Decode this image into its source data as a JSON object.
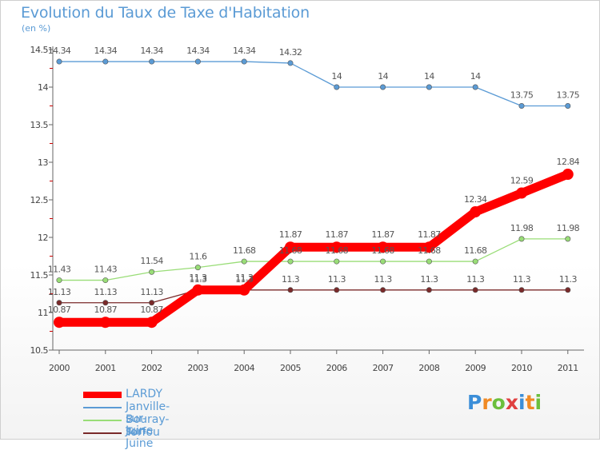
{
  "chart_data": {
    "type": "line",
    "title": "Evolution du Taux de Taxe d'Habitation",
    "subtitle": "(en %)",
    "x": [
      "2000",
      "2001",
      "2002",
      "2003",
      "2004",
      "2005",
      "2006",
      "2007",
      "2008",
      "2009",
      "2010",
      "2011"
    ],
    "ylim": [
      10.5,
      14.5
    ],
    "yticks": [
      "10.5",
      "11",
      "11.5",
      "12",
      "12.5",
      "13",
      "13.5",
      "14",
      "14.5"
    ],
    "series": [
      {
        "name": "LARDY",
        "color": "#ff0000",
        "values": [
          10.87,
          10.87,
          10.87,
          11.3,
          11.3,
          11.87,
          11.87,
          11.87,
          11.87,
          12.34,
          12.59,
          12.84
        ],
        "labels": [
          "10.87",
          "10.87",
          "10.87",
          "11.3",
          "11.3",
          "11.87",
          "11.87",
          "11.87",
          "11.87",
          "12.34",
          "12.59",
          "12.84"
        ]
      },
      {
        "name": "Janville-sur-Juine",
        "color": "#5b9bd5",
        "values": [
          14.34,
          14.34,
          14.34,
          14.34,
          14.34,
          14.32,
          14,
          14,
          14,
          14,
          13.75,
          13.75
        ],
        "labels": [
          "14.34",
          "14.34",
          "14.34",
          "14.34",
          "14.34",
          "14.32",
          "14",
          "14",
          "14",
          "14",
          "13.75",
          "13.75"
        ]
      },
      {
        "name": "Bouray-sur-Juine",
        "color": "#99dd77",
        "values": [
          11.43,
          11.43,
          11.54,
          11.6,
          11.68,
          11.68,
          11.68,
          11.68,
          11.68,
          11.68,
          11.98,
          11.98
        ],
        "labels": [
          "11.43",
          "11.43",
          "11.54",
          "11.6",
          "11.68",
          "11.68",
          "11.68",
          "11.68",
          "11.68",
          "11.68",
          "11.98",
          "11.98"
        ]
      },
      {
        "name": "Torfou",
        "color": "#7a2a2a",
        "values": [
          11.13,
          11.13,
          11.13,
          11.3,
          11.3,
          11.3,
          11.3,
          11.3,
          11.3,
          11.3,
          11.3,
          11.3
        ],
        "labels": [
          "11.13",
          "11.13",
          "11.13",
          "11.3",
          "11.3",
          "11.3",
          "11.3",
          "11.3",
          "11.3",
          "11.3",
          "11.3",
          "11.3"
        ]
      }
    ]
  },
  "logo": {
    "text": "Proxiti",
    "letters": [
      "P",
      "r",
      "o",
      "x",
      "i",
      "t",
      "i"
    ],
    "colors": [
      "#3b8ed8",
      "#f08a24",
      "#6cbf3c",
      "#e04040",
      "#3b8ed8",
      "#f08a24",
      "#6cbf3c"
    ]
  }
}
